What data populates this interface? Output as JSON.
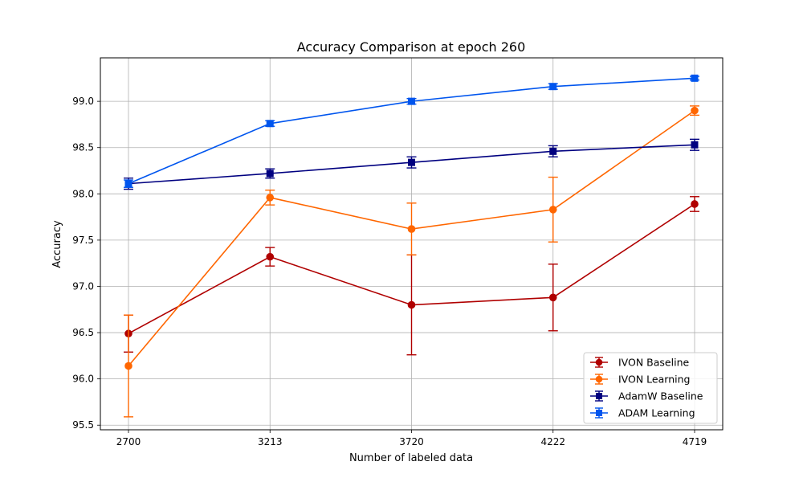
{
  "chart_data": {
    "type": "line",
    "title": "Accuracy Comparison at epoch 260",
    "xlabel": "Number of labeled data",
    "ylabel": "Accuracy",
    "categories": [
      "2700",
      "3213",
      "3720",
      "4222",
      "4719"
    ],
    "ylim": [
      95.45,
      99.47
    ],
    "yticks": [
      95.5,
      96.0,
      96.5,
      97.0,
      97.5,
      98.0,
      98.5,
      99.0
    ],
    "ytick_labels": [
      "95.5",
      "96.0",
      "96.5",
      "97.0",
      "97.5",
      "98.0",
      "98.5",
      "99.0"
    ],
    "grid": true,
    "error_bars": true,
    "legend_position": "lower-right",
    "series": [
      {
        "name": "IVON Baseline",
        "color": "#b00000",
        "marker": "circle",
        "values": [
          96.49,
          97.32,
          96.8,
          96.88,
          97.89
        ],
        "errors": [
          0.2,
          0.1,
          0.54,
          0.36,
          0.08
        ]
      },
      {
        "name": "IVON Learning",
        "color": "#ff6600",
        "marker": "circle",
        "values": [
          96.14,
          97.96,
          97.62,
          97.83,
          98.9
        ],
        "errors": [
          0.55,
          0.08,
          0.28,
          0.35,
          0.05
        ]
      },
      {
        "name": "AdamW Baseline",
        "color": "#000080",
        "marker": "square",
        "values": [
          98.11,
          98.22,
          98.34,
          98.46,
          98.53
        ],
        "errors": [
          0.06,
          0.05,
          0.06,
          0.06,
          0.06
        ]
      },
      {
        "name": "ADAM Learning",
        "color": "#0055ee",
        "marker": "square",
        "values": [
          98.11,
          98.76,
          99.0,
          99.16,
          99.25
        ],
        "errors": [
          0.04,
          0.03,
          0.03,
          0.03,
          0.02
        ]
      }
    ]
  }
}
